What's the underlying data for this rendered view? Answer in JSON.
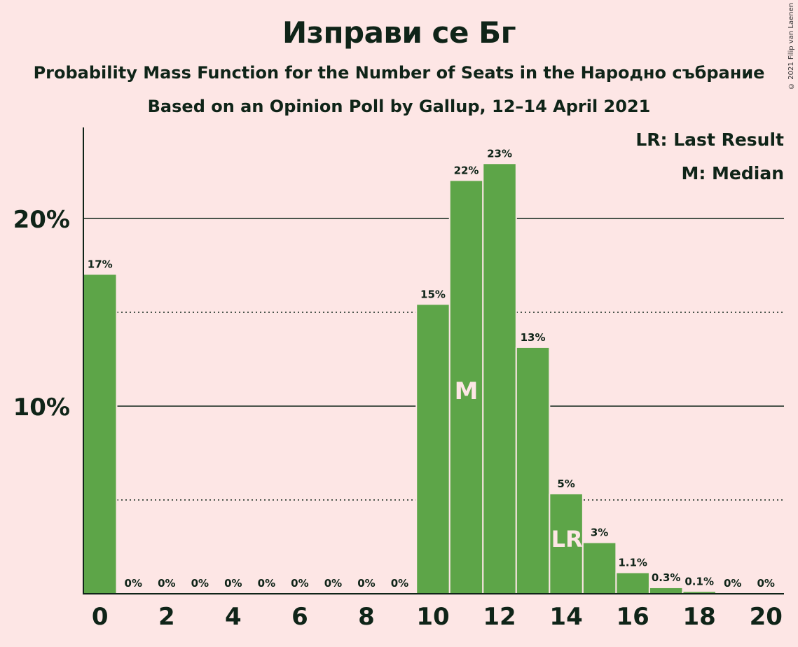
{
  "chart_data": {
    "type": "bar",
    "title": "Изправи се Бг",
    "subtitle": "Probability Mass Function for the Number of Seats in the Народно събрание",
    "subtitle2": "Based on an Opinion Poll by Gallup, 12–14 April 2021",
    "copyright": "© 2021 Filip van Laenen",
    "legend": [
      "LR: Last Result",
      "M: Median"
    ],
    "categories": [
      0,
      1,
      2,
      3,
      4,
      5,
      6,
      7,
      8,
      9,
      10,
      11,
      12,
      13,
      14,
      15,
      16,
      17,
      18,
      19,
      20
    ],
    "values": [
      17.0,
      0,
      0,
      0,
      0,
      0,
      0,
      0,
      0,
      0,
      15.4,
      22.0,
      22.9,
      13.1,
      5.3,
      2.7,
      1.1,
      0.3,
      0.1,
      0,
      0
    ],
    "labels": [
      "17%",
      "0%",
      "0%",
      "0%",
      "0%",
      "0%",
      "0%",
      "0%",
      "0%",
      "0%",
      "15%",
      "22%",
      "23%",
      "13%",
      "5%",
      "3%",
      "1.1%",
      "0.3%",
      "0.1%",
      "0%",
      "0%"
    ],
    "x_tick_labels": [
      "0",
      "2",
      "4",
      "6",
      "8",
      "10",
      "12",
      "14",
      "16",
      "18",
      "20"
    ],
    "y_tick_labels": [
      "10%",
      "20%"
    ],
    "ylim": [
      0,
      25
    ],
    "median_seat": 11,
    "median_label": "M",
    "last_result_seat": 14,
    "last_result_label": "LR",
    "bar_color": "#5da548",
    "background_color": "#fde6e5",
    "text_color": "#0f2418"
  }
}
